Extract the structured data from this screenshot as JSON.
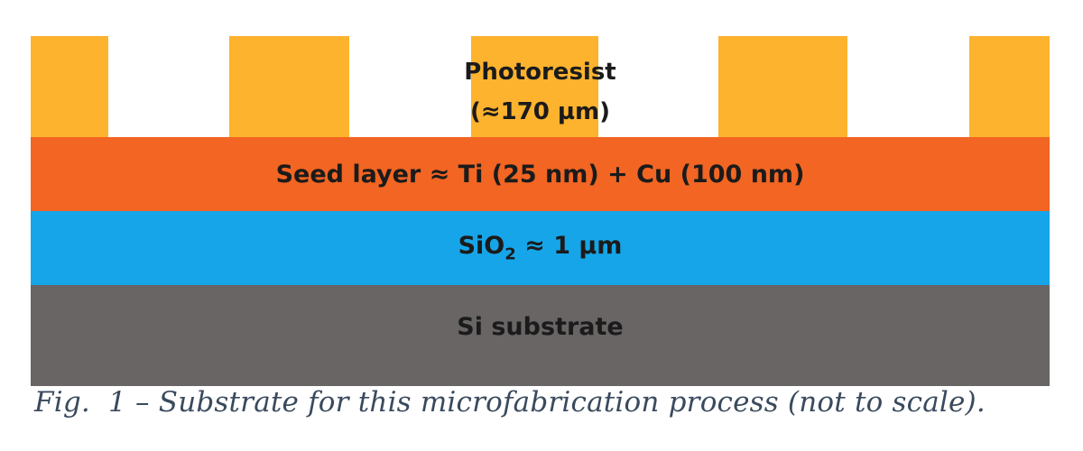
{
  "colors": {
    "photoresist": "#fdb32e",
    "seed_layer": "#f26522",
    "sio2": "#16a5e8",
    "substrate": "#696565"
  },
  "photoresist": {
    "name": "Photoresist",
    "thickness": "(≈170 µm)"
  },
  "seed_layer": {
    "label": "Seed layer ≈ Ti (25 nm) + Cu (100 nm)"
  },
  "sio2": {
    "formula_base": "SiO",
    "formula_subscript": "2",
    "thickness": " ≈ 1 µm"
  },
  "substrate": {
    "label": "Si substrate"
  },
  "caption": "Fig.  1 – Substrate for this microfabrication process (not to scale)."
}
